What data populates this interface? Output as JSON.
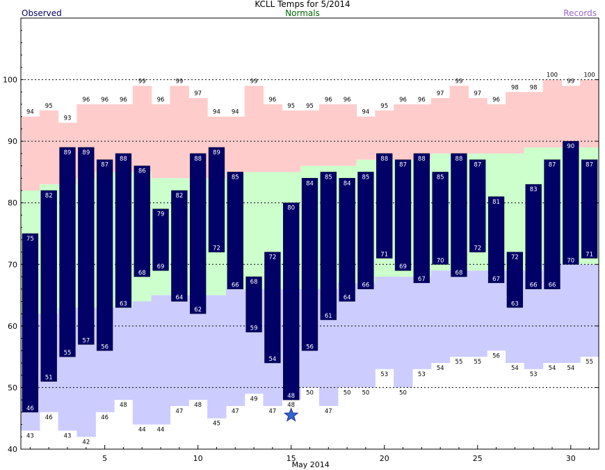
{
  "chart_data": {
    "type": "bar",
    "title": "KCLL Temps for 5/2014",
    "xlabel": "May 2014",
    "legend": {
      "observed": "Observed",
      "normals": "Normals",
      "records": "Records"
    },
    "ylim": [
      40,
      110
    ],
    "yticks": [
      40,
      50,
      60,
      70,
      80,
      90,
      100
    ],
    "xticks": [
      5,
      10,
      15,
      20,
      25,
      30
    ],
    "grid": "dashed horizontal lines at 50, 60, 70, 80, 90, 100",
    "days": [
      1,
      2,
      3,
      4,
      5,
      6,
      7,
      8,
      9,
      10,
      11,
      12,
      13,
      14,
      15,
      16,
      17,
      18,
      19,
      20,
      21,
      22,
      23,
      24,
      25,
      26,
      27,
      28,
      29,
      30,
      31
    ],
    "observed_high": [
      75,
      82,
      89,
      89,
      87,
      88,
      86,
      79,
      82,
      88,
      89,
      85,
      68,
      72,
      80,
      84,
      85,
      84,
      85,
      88,
      87,
      88,
      85,
      88,
      87,
      81,
      72,
      83,
      87,
      90,
      87
    ],
    "observed_low": [
      46,
      51,
      55,
      57,
      56,
      63,
      68,
      69,
      64,
      62,
      72,
      66,
      59,
      54,
      48,
      56,
      61,
      64,
      66,
      71,
      69,
      67,
      70,
      68,
      72,
      67,
      63,
      66,
      66,
      70,
      71
    ],
    "record_high": [
      94,
      95,
      93,
      96,
      96,
      96,
      99,
      96,
      99,
      97,
      94,
      94,
      99,
      96,
      95,
      95,
      96,
      96,
      94,
      95,
      96,
      96,
      97,
      99,
      97,
      96,
      98,
      98,
      100,
      99,
      100
    ],
    "record_low": [
      43,
      46,
      43,
      42,
      46,
      48,
      44,
      44,
      47,
      48,
      45,
      47,
      49,
      47,
      48,
      50,
      47,
      50,
      50,
      53,
      50,
      53,
      54,
      55,
      55,
      56,
      54,
      53,
      54,
      54,
      55
    ],
    "normal_high": [
      82,
      83,
      83,
      84,
      85,
      85,
      85,
      84,
      84,
      84,
      84,
      85,
      85,
      85,
      85,
      86,
      86,
      86,
      87,
      87,
      87,
      87,
      88,
      88,
      88,
      88,
      88,
      89,
      89,
      89,
      89
    ],
    "normal_low": [
      62,
      62,
      63,
      63,
      63,
      63,
      64,
      65,
      65,
      65,
      65,
      66,
      66,
      66,
      66,
      66,
      66,
      67,
      67,
      68,
      68,
      68,
      69,
      69,
      69,
      69,
      69,
      69,
      70,
      70,
      70
    ],
    "marker": {
      "day": 15,
      "value": 45.5,
      "shape": "star"
    },
    "colors": {
      "observed": "#000066",
      "normal_band": "#ccffcc",
      "record_high_band": "#ffcccc",
      "record_low_band": "#ccccff",
      "star": "#3366cc",
      "normals_label": "#006600",
      "records_label": "#9966cc"
    }
  }
}
